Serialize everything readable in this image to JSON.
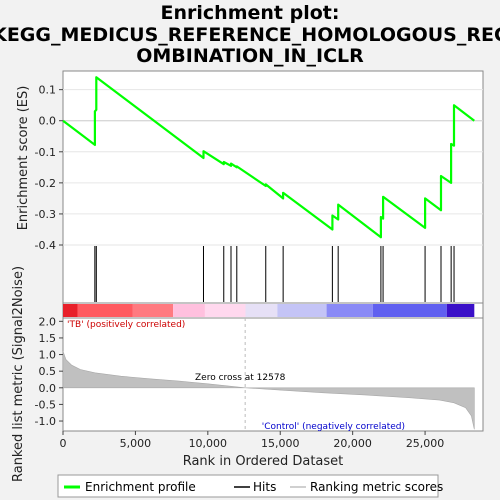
{
  "chart_data": {
    "type": "line",
    "title_lines": [
      "Enrichment plot:",
      "KEGG_MEDICUS_REFERENCE_HOMOLOGOUS_REC",
      "OMBINATION_IN_ICLR"
    ],
    "es_ylabel": "Enrichment score (ES)",
    "metric_ylabel": "Ranked list metric (Signal2Noise)",
    "xlabel": "Rank in Ordered Dataset",
    "x_range": [
      0,
      29000
    ],
    "x_ticks": [
      0,
      5000,
      10000,
      15000,
      20000,
      25000
    ],
    "x_tick_labels": [
      "0",
      "5,000",
      "10,000",
      "15,000",
      "20,000",
      "25,000"
    ],
    "es_ylim": [
      -0.4,
      0.16
    ],
    "es_ticks": [
      0.1,
      0.0,
      -0.1,
      -0.2,
      -0.3,
      -0.4
    ],
    "es_tick_labels": [
      "0.1",
      "0.0",
      "-0.1",
      "-0.2",
      "-0.3",
      "-0.4"
    ],
    "metric_ylim": [
      -1.3,
      2.1
    ],
    "metric_ticks": [
      2.0,
      1.5,
      1.0,
      0.5,
      0.0,
      -0.5,
      -1.0
    ],
    "metric_tick_labels": [
      "2.0",
      "1.5",
      "1.0",
      "0.5",
      "0.0",
      "-0.5",
      "-1.0"
    ],
    "max_rank": 28400,
    "hits": [
      2200,
      2300,
      9700,
      11100,
      11600,
      12000,
      14000,
      15200,
      18600,
      19000,
      21950,
      22100,
      25000,
      26100,
      26800,
      27000
    ],
    "es_curve": [
      [
        0,
        0.0
      ],
      [
        2200,
        -0.078
      ],
      [
        2200,
        0.03
      ],
      [
        2300,
        0.035
      ],
      [
        2300,
        0.14
      ],
      [
        9700,
        -0.12
      ],
      [
        9700,
        -0.098
      ],
      [
        11100,
        -0.14
      ],
      [
        11100,
        -0.133
      ],
      [
        11600,
        -0.145
      ],
      [
        11600,
        -0.138
      ],
      [
        12000,
        -0.15
      ],
      [
        12000,
        -0.147
      ],
      [
        14000,
        -0.21
      ],
      [
        14000,
        -0.205
      ],
      [
        15200,
        -0.25
      ],
      [
        15200,
        -0.232
      ],
      [
        18600,
        -0.35
      ],
      [
        18600,
        -0.305
      ],
      [
        19000,
        -0.318
      ],
      [
        19000,
        -0.27
      ],
      [
        21950,
        -0.375
      ],
      [
        21950,
        -0.31
      ],
      [
        22100,
        -0.315
      ],
      [
        22100,
        -0.245
      ],
      [
        25000,
        -0.345
      ],
      [
        25000,
        -0.25
      ],
      [
        26100,
        -0.288
      ],
      [
        26100,
        -0.178
      ],
      [
        26800,
        -0.2
      ],
      [
        26800,
        -0.075
      ],
      [
        27000,
        -0.08
      ],
      [
        27000,
        0.05
      ],
      [
        28400,
        0.0
      ]
    ],
    "metric_profile": [
      [
        0,
        1.1
      ],
      [
        200,
        0.85
      ],
      [
        600,
        0.68
      ],
      [
        1200,
        0.55
      ],
      [
        2200,
        0.45
      ],
      [
        4000,
        0.35
      ],
      [
        6000,
        0.27
      ],
      [
        8000,
        0.2
      ],
      [
        10000,
        0.12
      ],
      [
        12578,
        0.0
      ],
      [
        15000,
        -0.07
      ],
      [
        18000,
        -0.15
      ],
      [
        21000,
        -0.22
      ],
      [
        24000,
        -0.3
      ],
      [
        26000,
        -0.37
      ],
      [
        27000,
        -0.45
      ],
      [
        27800,
        -0.6
      ],
      [
        28200,
        -0.85
      ],
      [
        28400,
        -1.25
      ]
    ],
    "zero_cross_rank": 12578,
    "zero_cross_label": "Zero cross at 12578",
    "pos_label": "'TB' (positively correlated)",
    "neg_label": "'Control' (negatively correlated)",
    "legend": [
      "Enrichment profile",
      "Hits",
      "Ranking metric scores"
    ],
    "colors": {
      "es_line": "#00ff00",
      "hits": "#000000",
      "metric_fill": "#c0c0c0",
      "pos_text": "#cc0000",
      "neg_text": "#0000cc",
      "zero_line": "#bbbbbb"
    },
    "heat_colors": [
      "#e8202a",
      "#ff5a60",
      "#ff7a80",
      "#ffc0de",
      "#ffd8ee",
      "#e6e0f6",
      "#c4c4f6",
      "#8a8af6",
      "#6060f0",
      "#3a10c8"
    ],
    "heat_breaks": [
      0,
      1000,
      4800,
      7600,
      9800,
      12600,
      14800,
      18200,
      21400,
      26500,
      28400
    ]
  }
}
